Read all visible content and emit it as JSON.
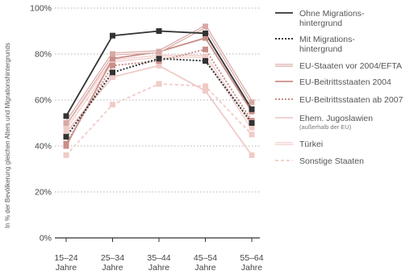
{
  "chart_data": {
    "type": "line",
    "ylabel": "In % der Bevölkerung gleichen Alters und Migrationshintergrunds",
    "ylim": [
      0,
      100
    ],
    "yticks": [
      0,
      20,
      40,
      60,
      80,
      100
    ],
    "ytick_labels": [
      "0%",
      "20%",
      "40%",
      "60%",
      "80%",
      "100%"
    ],
    "categories": [
      [
        "15–24",
        "Jahre"
      ],
      [
        "25–34",
        "Jahre"
      ],
      [
        "35–44",
        "Jahre"
      ],
      [
        "45–54",
        "Jahre"
      ],
      [
        "55–64",
        "Jahre"
      ]
    ],
    "grid": "horizontal dotted",
    "legend_position": "right",
    "series": [
      {
        "name": [
          "Ohne Migrations-",
          "hintergrund"
        ],
        "values": [
          53,
          88,
          90,
          89,
          56
        ],
        "color": "#333333",
        "style": "solid",
        "marker": true
      },
      {
        "name": [
          "Mit Migrations-",
          "hintergrund"
        ],
        "values": [
          44,
          72,
          78,
          77,
          50
        ],
        "color": "#333333",
        "style": "dotted",
        "marker": true
      },
      {
        "name": [
          "EU-Staaten vor 2004/EFTA"
        ],
        "values": [
          50,
          80,
          81,
          92,
          59
        ],
        "color": "#d7a9a4",
        "style": "double",
        "marker": true
      },
      {
        "name": [
          "EU-Beitrittsstaaten 2004"
        ],
        "values": [
          40,
          78,
          81,
          87,
          55
        ],
        "color": "#c98e88",
        "style": "solid",
        "marker": true
      },
      {
        "name": [
          "EU-Beitrittsstaaten ab 2007"
        ],
        "values": [
          41,
          75,
          77,
          82,
          51
        ],
        "color": "#c98e88",
        "style": "dotted",
        "marker": true
      },
      {
        "name": [
          "Ehem. Jugoslawien"
        ],
        "subtitle": "(außerhalb der EU)",
        "values": [
          46,
          70,
          75,
          64,
          36
        ],
        "color": "#f0cbc7",
        "style": "solid",
        "marker": true
      },
      {
        "name": [
          "Türkei"
        ],
        "values": [
          48,
          77,
          79,
          79,
          48
        ],
        "color": "#f0cbc7",
        "style": "double",
        "marker": true
      },
      {
        "name": [
          "Sonstige Staaten"
        ],
        "values": [
          36,
          58,
          67,
          66,
          45
        ],
        "color": "#f0cbc7",
        "style": "dashed",
        "marker": true
      }
    ]
  }
}
